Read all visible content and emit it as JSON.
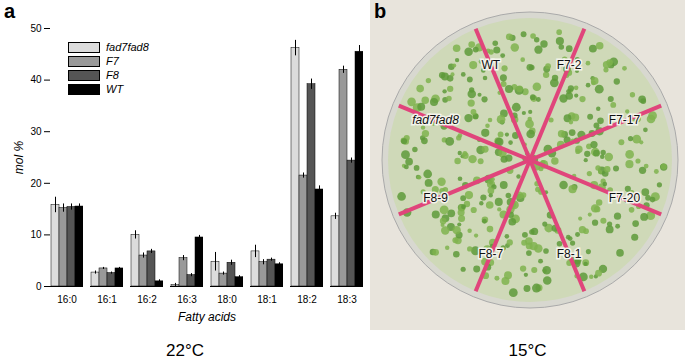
{
  "chart_data": {
    "type": "bar",
    "panel": "a",
    "caption": "22°C",
    "x_label": "Fatty acids",
    "y_label": "mol %",
    "categories": [
      "16:0",
      "16:1",
      "16:2",
      "16:3",
      "18:0",
      "18:1",
      "18:2",
      "18:3"
    ],
    "series": [
      {
        "name": "fad7fad8",
        "color": "#dcdcdc",
        "values": [
          15.8,
          2.7,
          10.0,
          0.3,
          4.8,
          6.8,
          46.2,
          13.6
        ],
        "errors": [
          1.5,
          0.3,
          0.8,
          0.3,
          1.8,
          1.2,
          1.5,
          0.6
        ]
      },
      {
        "name": "F7",
        "color": "#999999",
        "values": [
          15.2,
          3.5,
          6.0,
          5.5,
          2.5,
          4.7,
          21.5,
          42.0
        ],
        "errors": [
          0.8,
          0.2,
          0.5,
          0.5,
          0.3,
          0.5,
          0.5,
          0.7
        ]
      },
      {
        "name": "F8",
        "color": "#555555",
        "values": [
          15.4,
          2.6,
          6.8,
          2.2,
          4.6,
          5.2,
          39.2,
          24.4
        ],
        "errors": [
          0.6,
          0.2,
          0.4,
          0.3,
          0.5,
          0.3,
          1.0,
          0.5
        ]
      },
      {
        "name": "WT",
        "color": "#000000",
        "values": [
          15.5,
          3.5,
          1.0,
          9.5,
          1.8,
          4.3,
          18.8,
          45.5
        ],
        "errors": [
          0.5,
          0.2,
          0.3,
          0.4,
          0.3,
          0.3,
          0.7,
          1.2
        ]
      }
    ],
    "ylim": [
      0,
      50
    ],
    "yticks": [
      0,
      10,
      20,
      30,
      40,
      50
    ],
    "grid": false,
    "legend": "top-left"
  },
  "photo": {
    "panel": "b",
    "caption": "15°C",
    "labels": [
      "F7-2",
      "F7-17",
      "F7-20",
      "F8-1",
      "F8-7",
      "F8-9",
      "fad7fad8",
      "WT"
    ]
  }
}
